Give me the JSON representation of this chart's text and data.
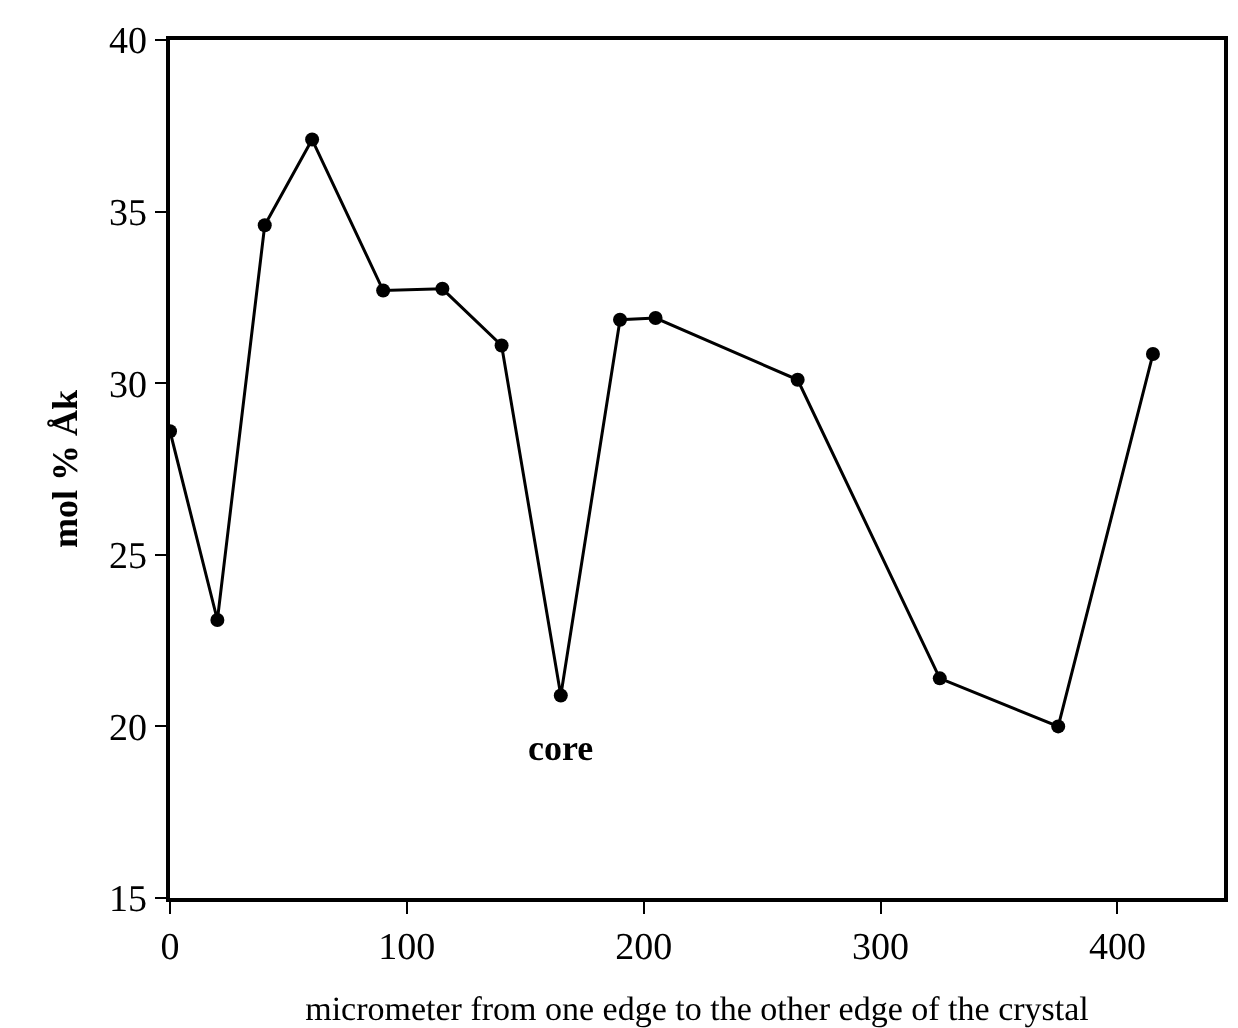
{
  "chart_data": {
    "type": "line",
    "xlabel": "micrometer from one edge to the other edge of the crystal",
    "ylabel": "mol % Åk",
    "x": [
      0,
      20,
      40,
      60,
      90,
      115,
      140,
      165,
      190,
      205,
      265,
      325,
      375,
      415
    ],
    "values": [
      28.6,
      23.1,
      34.6,
      37.1,
      32.7,
      32.75,
      31.1,
      20.9,
      31.85,
      31.9,
      30.1,
      21.4,
      20.0,
      30.85
    ],
    "color": "#000000",
    "marker": "circle",
    "line_style": "solid",
    "xlim": [
      0,
      445
    ],
    "xticks": [
      0,
      100,
      200,
      300,
      400
    ],
    "ylim": [
      15,
      40
    ],
    "yticks": [
      15,
      20,
      25,
      30,
      35,
      40
    ],
    "grid": false,
    "legend": false,
    "annotations": [
      {
        "text": "core",
        "x": 165,
        "y": 20.9
      }
    ]
  }
}
